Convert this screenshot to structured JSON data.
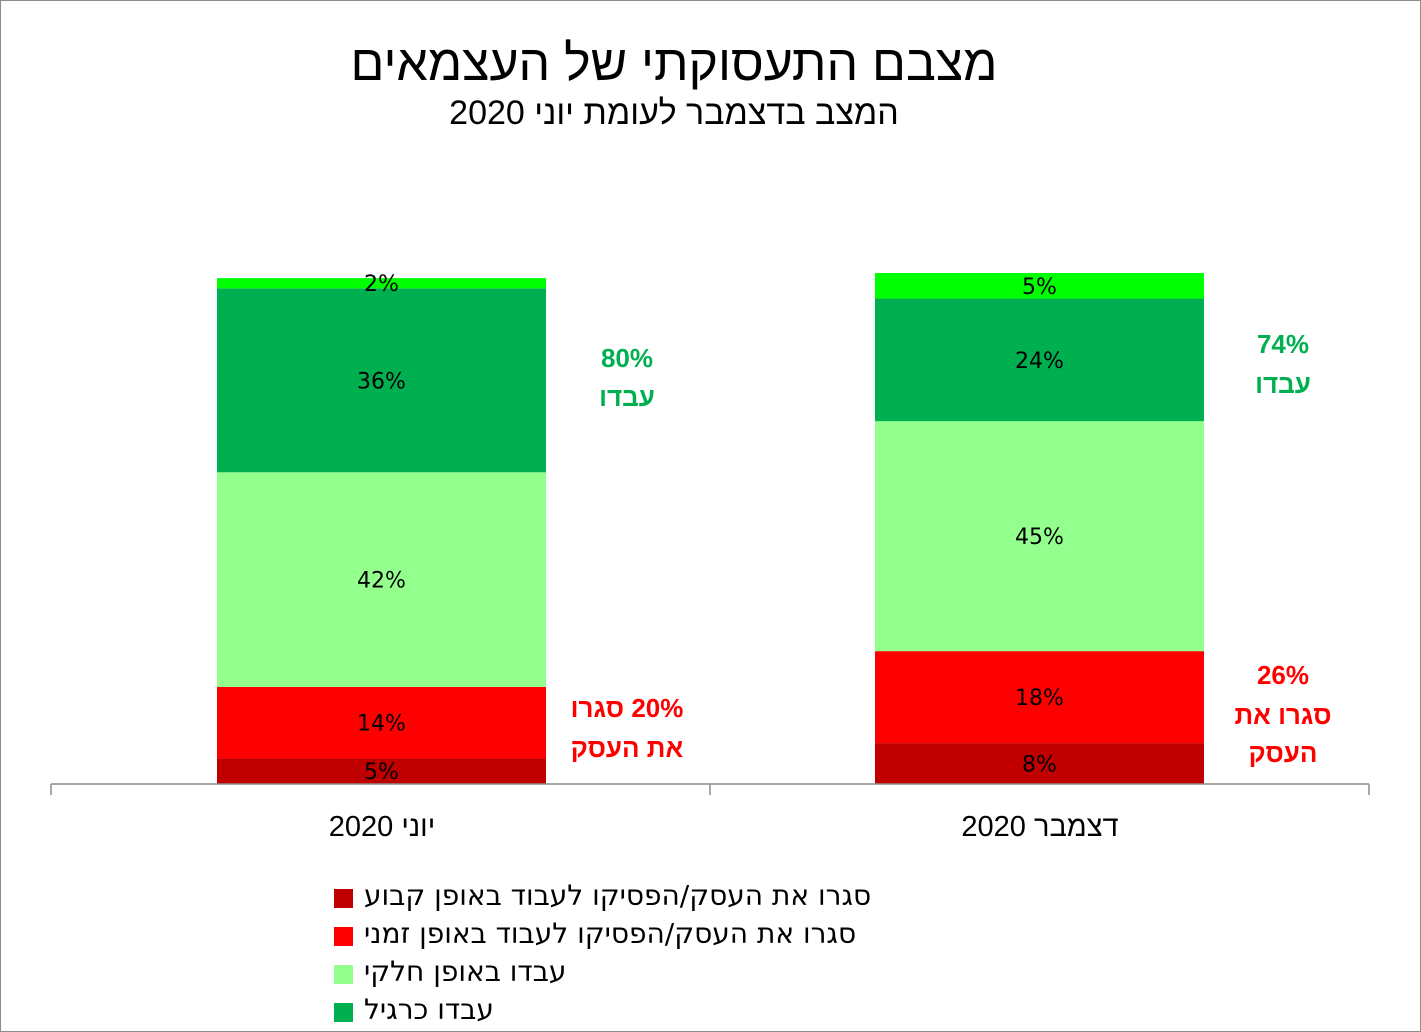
{
  "title": "מצבם התעסוקתי של העצמאים",
  "subtitle": "המצב בדצמבר לעומת יוני 2020",
  "colors": {
    "closed_permanent": "#c00000",
    "closed_temporary": "#ff0000",
    "partial": "#93ff8c",
    "regular": "#00b050",
    "top": "#00ff00",
    "worked_summary": "#00b050",
    "closed_summary": "#ff0000"
  },
  "chart_data": {
    "type": "bar",
    "stacked": true,
    "categories": [
      "יוני 2020",
      "דצמבר 2020"
    ],
    "series": [
      {
        "name": "סגרו את העסק/הפסיקו לעבוד באופן קבוע",
        "key": "closed_permanent",
        "values": [
          5,
          8
        ],
        "labels": [
          "5%",
          "8%"
        ]
      },
      {
        "name": "סגרו את העסק/הפסיקו לעבוד באופן זמני",
        "key": "closed_temporary",
        "values": [
          14,
          18
        ],
        "labels": [
          "14%",
          "18%"
        ]
      },
      {
        "name": "עבדו באופן חלקי",
        "key": "partial",
        "values": [
          42,
          45
        ],
        "labels": [
          "42%",
          "45%"
        ]
      },
      {
        "name": "עבדו כרגיל",
        "key": "regular",
        "values": [
          36,
          24
        ],
        "labels": [
          "36%",
          "24%"
        ]
      },
      {
        "key": "top",
        "values": [
          2,
          5
        ],
        "labels": [
          "2%",
          "5%"
        ]
      }
    ],
    "ylim": [
      0,
      100
    ],
    "annotations": [
      {
        "category": 0,
        "kind": "worked",
        "lines": [
          "80%",
          "עבדו"
        ]
      },
      {
        "category": 0,
        "kind": "closed",
        "lines": [
          "20% סגרו",
          "את העסק"
        ]
      },
      {
        "category": 1,
        "kind": "worked",
        "lines": [
          "74%",
          "עבדו"
        ]
      },
      {
        "category": 1,
        "kind": "closed",
        "lines": [
          "26%",
          "סגרו את",
          "העסק"
        ]
      }
    ],
    "legend_position": "bottom"
  },
  "legend": [
    {
      "label": "סגרו את העסק/הפסיקו לעבוד באופן קבוע",
      "color": "#c00000"
    },
    {
      "label": "סגרו את העסק/הפסיקו לעבוד באופן זמני",
      "color": "#ff0000"
    },
    {
      "label": "עבדו באופן חלקי",
      "color": "#93ff8c"
    },
    {
      "label": "עבדו כרגיל",
      "color": "#00b050"
    }
  ]
}
